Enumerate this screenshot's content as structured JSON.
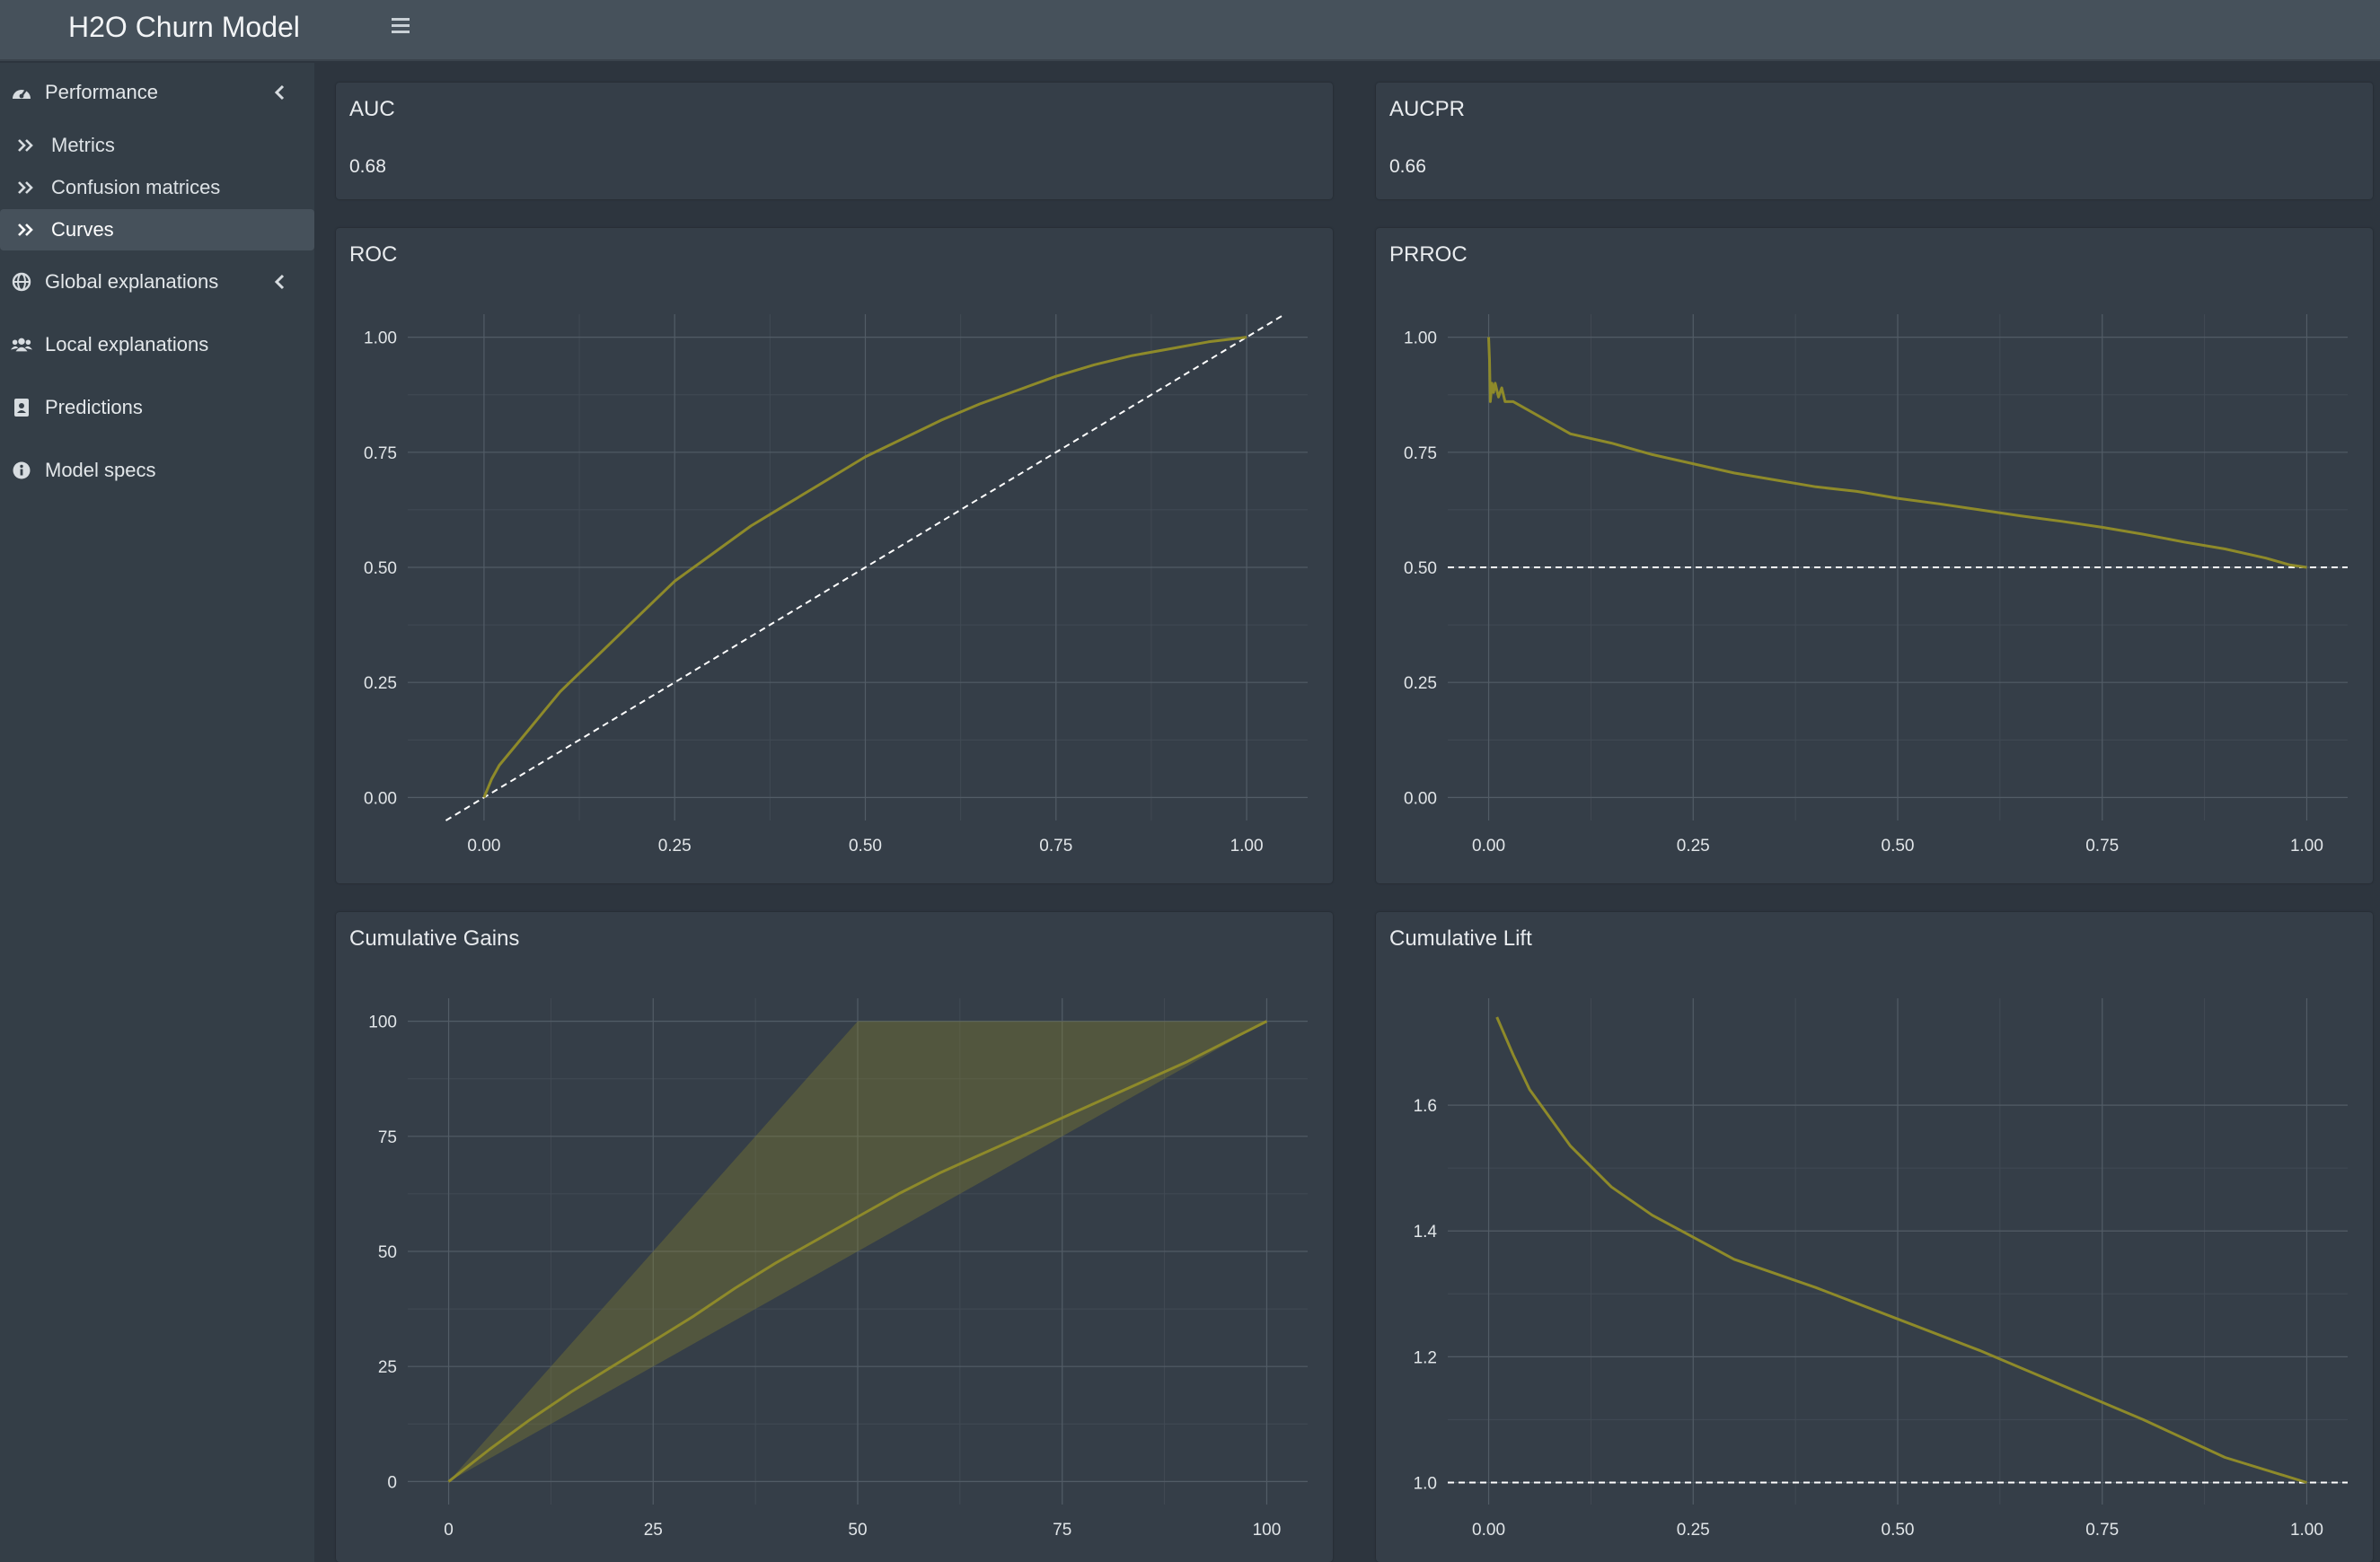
{
  "app": {
    "title": "H2O Churn Model"
  },
  "sidebar": {
    "performance": "Performance",
    "metrics": "Metrics",
    "confusion": "Confusion matrices",
    "curves": "Curves",
    "global": "Global explanations",
    "local": "Local explanations",
    "predictions": "Predictions",
    "specs": "Model specs"
  },
  "icons": {
    "hamburger": "hamburger-icon",
    "performance": "dashboard-gauge-icon",
    "submenu": "double-chevron-right-icon",
    "global": "globe-icon",
    "local": "users-icon",
    "predictions": "address-book-icon",
    "specs": "info-circle-icon",
    "collapse": "chevron-left-icon"
  },
  "colors": {
    "accent": "#8e8a2a",
    "background": "#2d353e",
    "card": "#353e48",
    "topbar": "#46515b",
    "reference_line": "#ffffff"
  },
  "metrics": {
    "auc_title": "AUC",
    "auc_value": "0.68",
    "aucpr_title": "AUCPR",
    "aucpr_value": "0.66"
  },
  "chart_data": [
    {
      "id": "roc",
      "title": "ROC",
      "type": "line",
      "xlim": [
        -0.1,
        1.08
      ],
      "ylim": [
        -0.05,
        1.05
      ],
      "x_ticks": [
        "0.00",
        "0.25",
        "0.50",
        "0.75",
        "1.00"
      ],
      "y_ticks": [
        "0.00",
        "0.25",
        "0.50",
        "0.75",
        "1.00"
      ],
      "series": [
        {
          "x": [
            0,
            0.01,
            0.02,
            0.04,
            0.06,
            0.08,
            0.1,
            0.15,
            0.2,
            0.25,
            0.3,
            0.35,
            0.4,
            0.45,
            0.5,
            0.55,
            0.6,
            0.65,
            0.7,
            0.75,
            0.8,
            0.85,
            0.9,
            0.95,
            1.0
          ],
          "y": [
            0,
            0.04,
            0.07,
            0.11,
            0.15,
            0.19,
            0.23,
            0.31,
            0.39,
            0.47,
            0.53,
            0.59,
            0.64,
            0.69,
            0.74,
            0.78,
            0.82,
            0.855,
            0.885,
            0.915,
            0.94,
            0.96,
            0.975,
            0.99,
            1.0
          ]
        }
      ],
      "reference": {
        "x": [
          -0.05,
          1.05
        ],
        "y": [
          -0.05,
          1.05
        ]
      },
      "grid": true
    },
    {
      "id": "prroc",
      "title": "PRROC",
      "type": "line",
      "xlim": [
        -0.05,
        1.05
      ],
      "ylim": [
        -0.05,
        1.05
      ],
      "x_ticks": [
        "0.00",
        "0.25",
        "0.50",
        "0.75",
        "1.00"
      ],
      "y_ticks": [
        "0.00",
        "0.25",
        "0.50",
        "0.75",
        "1.00"
      ],
      "series": [
        {
          "x": [
            0,
            0.001,
            0.002,
            0.004,
            0.006,
            0.008,
            0.012,
            0.016,
            0.02,
            0.03,
            0.05,
            0.08,
            0.1,
            0.15,
            0.2,
            0.25,
            0.3,
            0.35,
            0.4,
            0.45,
            0.5,
            0.55,
            0.6,
            0.65,
            0.7,
            0.75,
            0.8,
            0.85,
            0.9,
            0.95,
            0.98,
            1.0
          ],
          "y": [
            1.0,
            0.95,
            0.86,
            0.9,
            0.88,
            0.9,
            0.87,
            0.89,
            0.86,
            0.86,
            0.84,
            0.81,
            0.79,
            0.77,
            0.745,
            0.725,
            0.705,
            0.69,
            0.675,
            0.665,
            0.65,
            0.638,
            0.625,
            0.612,
            0.6,
            0.587,
            0.572,
            0.555,
            0.54,
            0.52,
            0.505,
            0.5
          ]
        }
      ],
      "reference": {
        "x": [
          -0.05,
          1.05
        ],
        "y": [
          0.5,
          0.5
        ]
      },
      "grid": true
    },
    {
      "id": "gains",
      "title": "Cumulative Gains",
      "type": "line",
      "xlim": [
        -5,
        105
      ],
      "ylim": [
        -5,
        105
      ],
      "x_ticks": [
        "0",
        "25",
        "50",
        "75",
        "100"
      ],
      "y_ticks": [
        "0",
        "25",
        "50",
        "75",
        "100"
      ],
      "series": [
        {
          "x": [
            0,
            5,
            10,
            15,
            20,
            25,
            30,
            35,
            40,
            45,
            50,
            55,
            60,
            65,
            70,
            75,
            80,
            85,
            90,
            95,
            100
          ],
          "y": [
            0,
            7,
            13.5,
            19.5,
            25,
            30.5,
            36,
            42,
            47.5,
            52.5,
            57.5,
            62.5,
            67,
            71,
            75,
            79,
            83,
            87,
            91,
            95.5,
            100
          ]
        }
      ],
      "band": {
        "upper_x": [
          0,
          50,
          100
        ],
        "upper_y": [
          0,
          100,
          100
        ],
        "lower_x": [
          0,
          100
        ],
        "lower_y": [
          0,
          100
        ]
      },
      "grid": true
    },
    {
      "id": "lift",
      "title": "Cumulative Lift",
      "type": "line",
      "xlim": [
        -0.05,
        1.05
      ],
      "ylim": [
        0.965,
        1.77
      ],
      "x_ticks": [
        "0.00",
        "0.25",
        "0.50",
        "0.75",
        "1.00"
      ],
      "y_ticks": [
        "1.0",
        "1.2",
        "1.4",
        "1.6"
      ],
      "series": [
        {
          "x": [
            0.01,
            0.03,
            0.05,
            0.1,
            0.15,
            0.2,
            0.25,
            0.3,
            0.4,
            0.5,
            0.6,
            0.7,
            0.8,
            0.9,
            1.0
          ],
          "y": [
            1.74,
            1.68,
            1.625,
            1.535,
            1.47,
            1.425,
            1.39,
            1.355,
            1.31,
            1.26,
            1.21,
            1.155,
            1.1,
            1.04,
            1.0
          ]
        }
      ],
      "reference": {
        "x": [
          -0.05,
          1.05
        ],
        "y": [
          1.0,
          1.0
        ]
      },
      "grid": true
    }
  ]
}
